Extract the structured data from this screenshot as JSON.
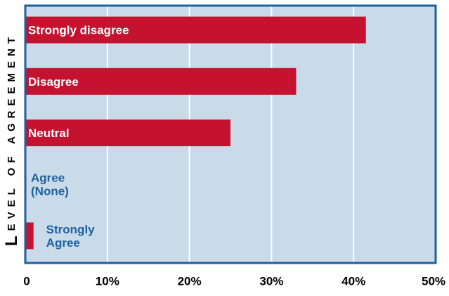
{
  "chart_data": {
    "type": "bar",
    "orientation": "horizontal",
    "ylabel": "Level of Agreement",
    "xlabel": "",
    "xlim": [
      0,
      50
    ],
    "x_ticks": [
      "0",
      "10%",
      "20%",
      "30%",
      "40%",
      "50%"
    ],
    "grid": true,
    "categories": [
      "Strongly disagree",
      "Disagree",
      "Neutral",
      "Agree\n(None)",
      "Strongly\nAgree"
    ],
    "values": [
      41.5,
      33,
      25,
      0,
      1
    ],
    "label_inside": [
      true,
      true,
      true,
      false,
      false
    ],
    "colors": {
      "bar": "#c41230",
      "plot_background": "#c9dbe8",
      "frame": "#1f5fa0",
      "gridline": "#ffffff",
      "outside_label": "#1f5fa0",
      "inside_label": "#ffffff"
    }
  }
}
